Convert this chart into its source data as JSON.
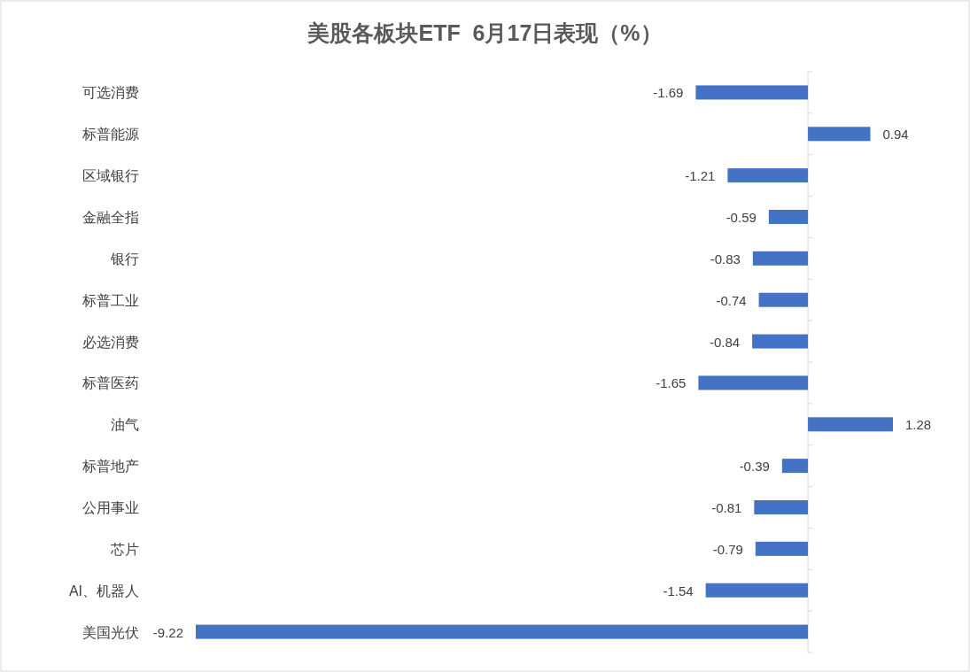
{
  "chart_data": {
    "type": "bar",
    "orientation": "horizontal",
    "title": "美股各板块ETF  6月17日表现（%）",
    "categories": [
      "可选消费",
      "标普能源",
      "区域银行",
      "金融全指",
      "银行",
      "标普工业",
      "必选消费",
      "标普医药",
      "油气",
      "标普地产",
      "公用事业",
      "芯片",
      "AI、机器人",
      "美国光伏"
    ],
    "values": [
      -1.69,
      0.94,
      -1.21,
      -0.59,
      -0.83,
      -0.74,
      -0.84,
      -1.65,
      1.28,
      -0.39,
      -0.81,
      -0.79,
      -1.54,
      -9.22
    ],
    "color": "#4472c4",
    "data_labels": true
  }
}
